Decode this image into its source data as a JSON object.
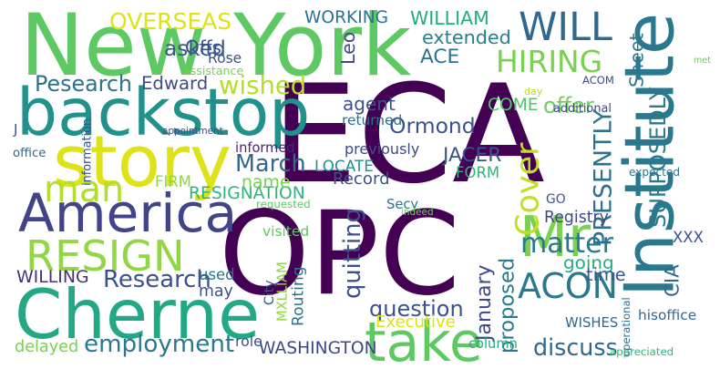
{
  "words": [
    {
      "text": "ECA",
      "color": "#440154"
    },
    {
      "text": "OPC",
      "color": "#440154"
    },
    {
      "text": "New York",
      "color": "#5ec962"
    },
    {
      "text": "backstop",
      "color": "#21918c"
    },
    {
      "text": "Institute",
      "color": "#2a788e"
    },
    {
      "text": "story",
      "color": "#dde318"
    },
    {
      "text": "America",
      "color": "#414487"
    },
    {
      "text": "Cherne",
      "color": "#22a884"
    },
    {
      "text": "RESIGN",
      "color": "#90d743"
    },
    {
      "text": "ACON",
      "color": "#2a788e"
    },
    {
      "text": "Mr",
      "color": "#7ad151"
    },
    {
      "text": "WILL",
      "color": "#31688e"
    },
    {
      "text": "take",
      "color": "#5ec962"
    },
    {
      "text": "man",
      "color": "#b5de2b"
    },
    {
      "text": "HIRING",
      "color": "#7ad151"
    },
    {
      "text": "Ormond",
      "color": "#3b528b"
    },
    {
      "text": "Research",
      "color": "#3b528b"
    },
    {
      "text": "employment",
      "color": "#2a788e"
    },
    {
      "text": "discuss",
      "color": "#31688e"
    },
    {
      "text": "Cover",
      "color": "#c2df23"
    },
    {
      "text": "matter",
      "color": "#2a788e"
    },
    {
      "text": "March",
      "color": "#31688e"
    },
    {
      "text": "RESIGNATION",
      "color": "#2fb47c"
    },
    {
      "text": "proposed",
      "color": "#2a788e"
    },
    {
      "text": "WORKING",
      "color": "#2c728e"
    },
    {
      "text": "WILLIAM",
      "color": "#25ab82"
    },
    {
      "text": "extended",
      "color": "#26828e"
    },
    {
      "text": "ACE",
      "color": "#2c728e"
    },
    {
      "text": "OVERSEAS",
      "color": "#dde318"
    },
    {
      "text": "asked",
      "color": "#38588c"
    },
    {
      "text": "wished",
      "color": "#b5de2b"
    },
    {
      "text": "Pesearch",
      "color": "#2d708e"
    },
    {
      "text": "Edward",
      "color": "#3e4989"
    },
    {
      "text": "agent",
      "color": "#3b528b"
    },
    {
      "text": "returned",
      "color": "#2d708e"
    },
    {
      "text": "COME",
      "color": "#52c569"
    },
    {
      "text": "offer",
      "color": "#6ece58"
    },
    {
      "text": "ACOM",
      "color": "#3e4989"
    },
    {
      "text": "JACER",
      "color": "#3b528b"
    },
    {
      "text": "LOCATE",
      "color": "#21918c"
    },
    {
      "text": "FORM",
      "color": "#2fb47c"
    },
    {
      "text": "Record",
      "color": "#3b528b"
    },
    {
      "text": "PRESENTLY",
      "color": "#2c728e"
    },
    {
      "text": "SUPPOSEDLY",
      "color": "#2a788e"
    },
    {
      "text": "name",
      "color": "#7ad151"
    },
    {
      "text": "FIRM",
      "color": "#90d743"
    },
    {
      "text": "GO",
      "color": "#3b528b"
    },
    {
      "text": "Registry",
      "color": "#3e4989"
    },
    {
      "text": "quitting",
      "color": "#3b528b"
    },
    {
      "text": "going",
      "color": "#25ab82"
    },
    {
      "text": "time",
      "color": "#38588c"
    },
    {
      "text": "XXX",
      "color": "#3b528b"
    },
    {
      "text": "CIA",
      "color": "#31688e"
    },
    {
      "text": "MXLLIAM",
      "color": "#8fd744"
    },
    {
      "text": "Routing",
      "color": "#2c728e"
    },
    {
      "text": "January",
      "color": "#3e4989"
    },
    {
      "text": "question",
      "color": "#3b528b"
    },
    {
      "text": "WISHES",
      "color": "#31688e"
    },
    {
      "text": "WASHINGTON",
      "color": "#3e4989"
    },
    {
      "text": "column",
      "color": "#25ab82"
    },
    {
      "text": "WILLING",
      "color": "#472f7d"
    },
    {
      "text": "may",
      "color": "#3b528b"
    },
    {
      "text": "used",
      "color": "#2c728e"
    },
    {
      "text": "delayed",
      "color": "#7ad151"
    },
    {
      "text": "Executive",
      "color": "#dde318"
    },
    {
      "text": "role",
      "color": "#3b528b"
    },
    {
      "text": "Offs",
      "color": "#3b528b"
    },
    {
      "text": "Rose",
      "color": "#3b528b"
    },
    {
      "text": "Leo",
      "color": "#3e4989"
    },
    {
      "text": "Sheet",
      "color": "#2a788e"
    },
    {
      "text": "Secy",
      "color": "#2a788e"
    },
    {
      "text": "previously",
      "color": "#3e4989"
    },
    {
      "text": "informed",
      "color": "#482677"
    },
    {
      "text": "requested",
      "color": "#5ec962"
    },
    {
      "text": "indeed",
      "color": "#6ece58"
    },
    {
      "text": "additional",
      "color": "#3e4989"
    },
    {
      "text": "expected",
      "color": "#2c728e"
    },
    {
      "text": "assistance",
      "color": "#7ad151"
    },
    {
      "text": "met",
      "color": "#6ece58"
    },
    {
      "text": "day",
      "color": "#b5de2b"
    },
    {
      "text": "information",
      "color": "#3b528b"
    },
    {
      "text": "appointment",
      "color": "#3e4989"
    },
    {
      "text": "office",
      "color": "#31688e"
    },
    {
      "text": "City",
      "color": "#3b528b"
    },
    {
      "text": "visited",
      "color": "#5ec962"
    },
    {
      "text": "hisoffice",
      "color": "#31688e"
    },
    {
      "text": "operational",
      "color": "#2c728e"
    },
    {
      "text": "appreciated",
      "color": "#2fb47c"
    },
    {
      "text": "J",
      "color": "#3b528b"
    }
  ]
}
